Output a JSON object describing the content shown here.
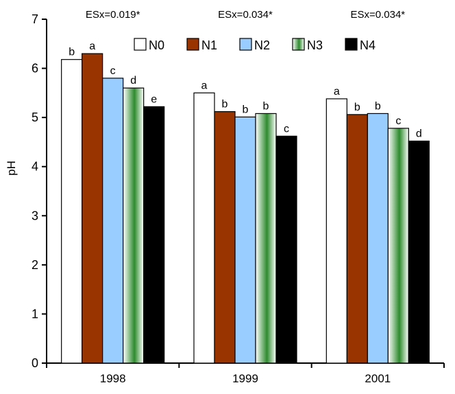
{
  "chart_data": {
    "type": "bar",
    "categories": [
      "1998",
      "1999",
      "2001"
    ],
    "ylabel": "pH",
    "ylim": [
      0,
      7
    ],
    "yticks": [
      "0",
      "1",
      "2",
      "3",
      "4",
      "5",
      "6",
      "7"
    ],
    "grid": false,
    "legend_position": "top-center",
    "significance_labels": [
      "ESx=0.019*",
      "ESx=0.034*",
      "ESx=0.034*"
    ],
    "series": [
      {
        "name": "N0",
        "color": "#ffffff",
        "values": [
          6.18,
          5.5,
          5.38
        ],
        "letters": [
          "b",
          "a",
          "a"
        ]
      },
      {
        "name": "N1",
        "color": "#993300",
        "values": [
          6.3,
          5.12,
          5.06
        ],
        "letters": [
          "a",
          "b",
          "b"
        ]
      },
      {
        "name": "N2",
        "color": "#99ccff",
        "values": [
          5.8,
          5.01,
          5.08
        ],
        "letters": [
          "c",
          "b",
          "b"
        ]
      },
      {
        "name": "N3",
        "color": "#339933",
        "pattern": "green-gradient",
        "values": [
          5.6,
          5.08,
          4.78
        ],
        "letters": [
          "d",
          "b",
          "c"
        ]
      },
      {
        "name": "N4",
        "color": "#000000",
        "values": [
          5.22,
          4.62,
          4.52
        ],
        "letters": [
          "e",
          "c",
          "d"
        ]
      }
    ]
  }
}
